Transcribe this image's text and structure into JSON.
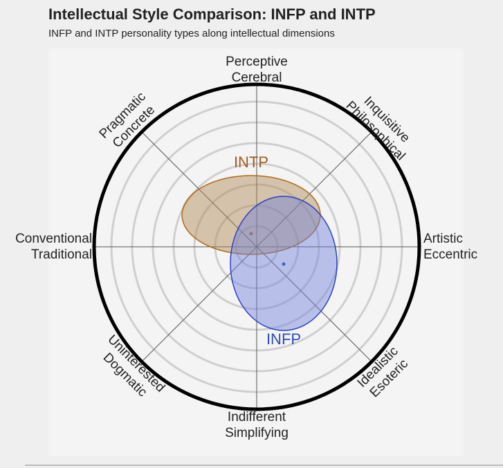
{
  "header": {
    "title": "Intellectual Style Comparison: INFP and INTP",
    "subtitle": "INFP and INTP personality types along intellectual dimensions"
  },
  "axes": [
    {
      "lines": [
        "Perceptive",
        "Cerebral"
      ]
    },
    {
      "lines": [
        "Inquisitive",
        "Philosophical"
      ]
    },
    {
      "lines": [
        "Artistic",
        "Eccentric"
      ]
    },
    {
      "lines": [
        "Idealistic",
        "Esoteric"
      ]
    },
    {
      "lines": [
        "Indifferent",
        "Simplifying"
      ]
    },
    {
      "lines": [
        "Uninterested",
        "Dogmatic"
      ]
    },
    {
      "lines": [
        "Conventional",
        "Traditional"
      ]
    },
    {
      "lines": [
        "Pragmatic",
        "Concrete"
      ]
    }
  ],
  "groups": [
    {
      "label": "INTP"
    },
    {
      "label": "INFP"
    }
  ]
}
